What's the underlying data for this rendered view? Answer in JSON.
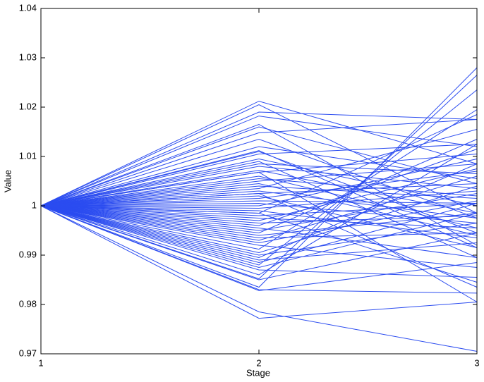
{
  "chart_data": {
    "type": "line",
    "xlabel": "Stage",
    "ylabel": "Value",
    "x": [
      1,
      2,
      3
    ],
    "xlim": [
      1,
      3
    ],
    "xticks": [
      1,
      2,
      3
    ],
    "ylim": [
      0.97,
      1.04
    ],
    "yticks": [
      0.97,
      0.98,
      0.99,
      1,
      1.01,
      1.02,
      1.03,
      1.04
    ],
    "series": [
      {
        "color": "#2b4cf0",
        "values": [
          1,
          1.0212,
          1.0085
        ]
      },
      {
        "color": "#2b4cf0",
        "values": [
          1,
          1.0205,
          0.9985
        ]
      },
      {
        "color": "#2b4cf0",
        "values": [
          1,
          1.019,
          1.0175
        ]
      },
      {
        "color": "#2b4cf0",
        "values": [
          1,
          1.0182,
          1.012
        ]
      },
      {
        "color": "#2b4cf0",
        "values": [
          1,
          1.0165,
          0.992
        ]
      },
      {
        "color": "#2b4cf0",
        "values": [
          1,
          1.016,
          1.0045
        ]
      },
      {
        "color": "#2b4cf0",
        "values": [
          1,
          1.0148,
          1.0175
        ]
      },
      {
        "color": "#2b4cf0",
        "values": [
          1,
          1.0135,
          0.9975
        ]
      },
      {
        "color": "#2b4cf0",
        "values": [
          1,
          1.012,
          1.0055
        ]
      },
      {
        "color": "#2b4cf0",
        "values": [
          1,
          1.011,
          0.9945
        ]
      },
      {
        "color": "#2b4cf0",
        "values": [
          1,
          1.0105,
          1.0125
        ]
      },
      {
        "color": "#2b4cf0",
        "values": [
          1,
          1.0095,
          1.0
        ]
      },
      {
        "color": "#2b4cf0",
        "values": [
          1,
          1.009,
          0.9895
        ]
      },
      {
        "color": "#2b4cf0",
        "values": [
          1,
          1.0085,
          1.0065
        ]
      },
      {
        "color": "#2b4cf0",
        "values": [
          1,
          1.008,
          1.0035
        ]
      },
      {
        "color": "#2b4cf0",
        "values": [
          1,
          1.0072,
          0.9985
        ]
      },
      {
        "color": "#2b4cf0",
        "values": [
          1,
          1.0068,
          1.0105
        ]
      },
      {
        "color": "#2b4cf0",
        "values": [
          1,
          1.006,
          0.9955
        ]
      },
      {
        "color": "#2b4cf0",
        "values": [
          1,
          1.0055,
          1.002
        ]
      },
      {
        "color": "#2b4cf0",
        "values": [
          1,
          1.005,
          1.0085
        ]
      },
      {
        "color": "#2b4cf0",
        "values": [
          1,
          1.0045,
          0.994
        ]
      },
      {
        "color": "#2b4cf0",
        "values": [
          1,
          1.004,
          1.0015
        ]
      },
      {
        "color": "#2b4cf0",
        "values": [
          1,
          1.0035,
          1.0155
        ]
      },
      {
        "color": "#2b4cf0",
        "values": [
          1,
          1.003,
          0.9975
        ]
      },
      {
        "color": "#2b4cf0",
        "values": [
          1,
          1.0025,
          1.0045
        ]
      },
      {
        "color": "#2b4cf0",
        "values": [
          1,
          1.002,
          0.9915
        ]
      },
      {
        "color": "#2b4cf0",
        "values": [
          1,
          1.0015,
          1.007
        ]
      },
      {
        "color": "#2b4cf0",
        "values": [
          1,
          1.001,
          1.0005
        ]
      },
      {
        "color": "#2b4cf0",
        "values": [
          1,
          1.0005,
          0.9965
        ]
      },
      {
        "color": "#2b4cf0",
        "values": [
          1,
          1.0,
          1.0095
        ]
      },
      {
        "color": "#2b4cf0",
        "values": [
          1,
          0.9995,
          1.003
        ]
      },
      {
        "color": "#2b4cf0",
        "values": [
          1,
          0.999,
          0.9935
        ]
      },
      {
        "color": "#2b4cf0",
        "values": [
          1,
          0.9985,
          1.0185
        ]
      },
      {
        "color": "#2b4cf0",
        "values": [
          1,
          0.998,
          1.0005
        ]
      },
      {
        "color": "#2b4cf0",
        "values": [
          1,
          0.9975,
          0.9955
        ]
      },
      {
        "color": "#2b4cf0",
        "values": [
          1,
          0.997,
          1.0075
        ]
      },
      {
        "color": "#2b4cf0",
        "values": [
          1,
          0.9965,
          0.998
        ]
      },
      {
        "color": "#2b4cf0",
        "values": [
          1,
          0.996,
          1.0115
        ]
      },
      {
        "color": "#2b4cf0",
        "values": [
          1,
          0.9955,
          0.9895
        ]
      },
      {
        "color": "#2b4cf0",
        "values": [
          1,
          0.995,
          1.0025
        ]
      },
      {
        "color": "#2b4cf0",
        "values": [
          1,
          0.9945,
          1.0135
        ]
      },
      {
        "color": "#2b4cf0",
        "values": [
          1,
          0.994,
          0.9985
        ]
      },
      {
        "color": "#2b4cf0",
        "values": [
          1,
          0.9935,
          0.9945
        ]
      },
      {
        "color": "#2b4cf0",
        "values": [
          1,
          0.993,
          1.006
        ]
      },
      {
        "color": "#2b4cf0",
        "values": [
          1,
          0.9925,
          1.001
        ]
      },
      {
        "color": "#2b4cf0",
        "values": [
          1,
          0.992,
          0.9875
        ]
      },
      {
        "color": "#2b4cf0",
        "values": [
          1,
          0.9912,
          1.0195
        ]
      },
      {
        "color": "#2b4cf0",
        "values": [
          1,
          0.9905,
          1.004
        ]
      },
      {
        "color": "#2b4cf0",
        "values": [
          1,
          0.99,
          0.9965
        ]
      },
      {
        "color": "#2b4cf0",
        "values": [
          1,
          0.9895,
          1.0085
        ]
      },
      {
        "color": "#2b4cf0",
        "values": [
          1,
          0.989,
          0.9925
        ]
      },
      {
        "color": "#2b4cf0",
        "values": [
          1,
          0.9885,
          1.0005
        ]
      },
      {
        "color": "#2b4cf0",
        "values": [
          1,
          0.988,
          1.0235
        ]
      },
      {
        "color": "#2b4cf0",
        "values": [
          1,
          0.9875,
          0.9985
        ]
      },
      {
        "color": "#2b4cf0",
        "values": [
          1,
          0.987,
          0.9855
        ]
      },
      {
        "color": "#2b4cf0",
        "values": [
          1,
          0.986,
          1.0125
        ]
      },
      {
        "color": "#2b4cf0",
        "values": [
          1,
          0.9852,
          1.0265
        ]
      },
      {
        "color": "#2b4cf0",
        "values": [
          1,
          0.985,
          0.9945
        ]
      },
      {
        "color": "#2b4cf0",
        "values": [
          1,
          0.9835,
          1.028
        ]
      },
      {
        "color": "#2b4cf0",
        "values": [
          1,
          0.983,
          0.9823
        ]
      },
      {
        "color": "#2b4cf0",
        "values": [
          1,
          0.9828,
          0.9885
        ]
      },
      {
        "color": "#2b4cf0",
        "values": [
          1,
          0.9785,
          0.9705
        ]
      },
      {
        "color": "#2b4cf0",
        "values": [
          1,
          0.9772,
          0.9805
        ]
      },
      {
        "color": "#2b4cf0",
        "values": [
          1,
          0.9985,
          0.9845
        ]
      },
      {
        "color": "#2b4cf0",
        "values": [
          1,
          1.0025,
          0.9835
        ]
      },
      {
        "color": "#2b4cf0",
        "values": [
          1,
          1.0068,
          0.9805
        ]
      },
      {
        "color": "#2b4cf0",
        "values": [
          1,
          1.0112,
          0.9915
        ]
      }
    ]
  }
}
